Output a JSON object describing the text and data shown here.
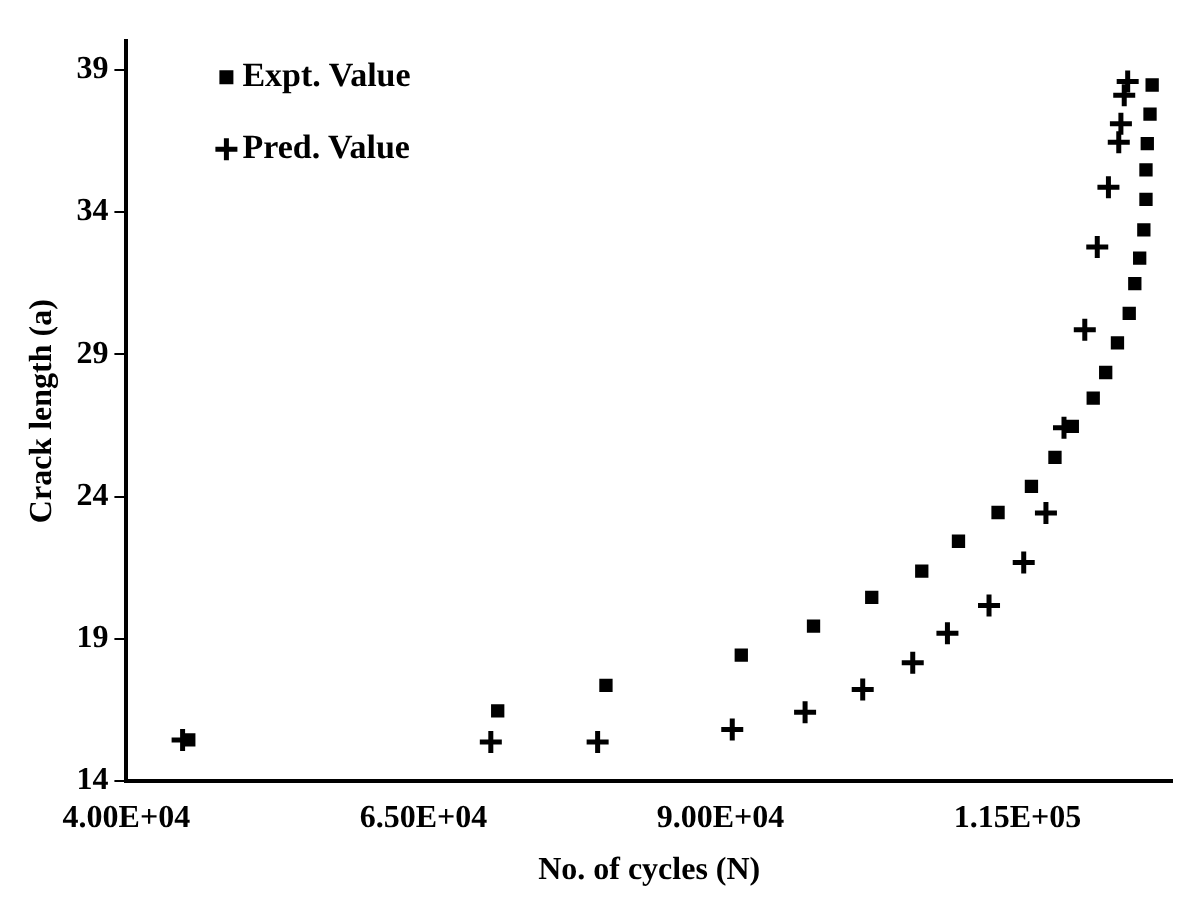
{
  "chart_data": {
    "type": "scatter",
    "xlabel": "No. of cycles (N)",
    "ylabel": "Crack length (a)",
    "xlim": [
      40000,
      128000
    ],
    "ylim": [
      14,
      40
    ],
    "xticks": [
      {
        "value": 40000,
        "label": "4.00E+04"
      },
      {
        "value": 65000,
        "label": "6.50E+04"
      },
      {
        "value": 90000,
        "label": "9.00E+04"
      },
      {
        "value": 115000,
        "label": "1.15E+05"
      }
    ],
    "yticks": [
      14,
      19,
      24,
      29,
      34,
      39
    ],
    "grid": false,
    "legend": "top left",
    "series": [
      {
        "name": "Expt. Value",
        "color": "#000000",
        "marker": "square",
        "x": [
          45250,
          71250,
          80360,
          91750,
          97830,
          102730,
          106940,
          110030,
          113360,
          116170,
          118150,
          119610,
          121370,
          122420,
          123410,
          124400,
          124870,
          125280,
          125630,
          125810,
          125810,
          125920,
          126150,
          126330
        ],
        "values": [
          15.45,
          16.47,
          17.37,
          18.43,
          19.45,
          20.46,
          21.38,
          22.43,
          23.44,
          24.36,
          25.38,
          26.47,
          27.46,
          28.36,
          29.4,
          30.44,
          31.48,
          32.38,
          33.37,
          34.44,
          35.48,
          36.4,
          37.44,
          38.46
        ]
      },
      {
        "name": "Pred. Value",
        "color": "#000000",
        "marker": "cross",
        "x": [
          44730,
          70670,
          79660,
          90990,
          97120,
          101970,
          106180,
          109100,
          112600,
          115520,
          117390,
          118910,
          120660,
          121710,
          122650,
          123520,
          123700,
          123980,
          124270
        ],
        "values": [
          15.45,
          15.38,
          15.38,
          15.82,
          16.42,
          17.22,
          18.16,
          19.2,
          20.17,
          21.68,
          23.42,
          26.42,
          29.86,
          32.77,
          34.87,
          36.45,
          37.1,
          38.1,
          38.58
        ]
      }
    ]
  }
}
